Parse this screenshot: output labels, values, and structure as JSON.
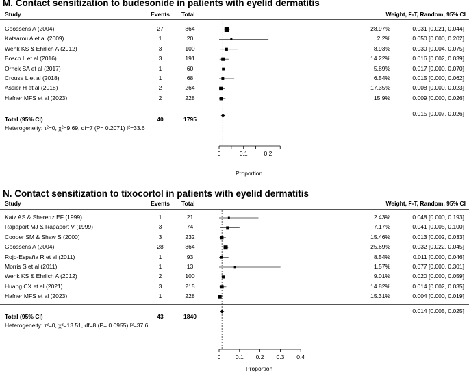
{
  "chart_data": [
    {
      "type": "forest",
      "title": "M. Contact sensitization to budesonide in patients with eyelid dermatitis",
      "columns": {
        "study": "Study",
        "events": "Events",
        "total": "Total",
        "weight_ci": "Weight, F-T, Random, 95% CI"
      },
      "studies": [
        {
          "study": "Goossens A (2004)",
          "events": "27",
          "total": "864",
          "weight": "28.97%",
          "estimate": 0.031,
          "ci_low": 0.021,
          "ci_high": 0.044,
          "ci_text": "0.031 [0.021, 0.044]"
        },
        {
          "study": "Katsarou A et al (2009)",
          "events": "1",
          "total": "20",
          "weight": "2.2%",
          "estimate": 0.05,
          "ci_low": 0.0,
          "ci_high": 0.202,
          "ci_text": "0.050 [0.000, 0.202]"
        },
        {
          "study": "Wenk KS & Ehrlich A (2012)",
          "events": "3",
          "total": "100",
          "weight": "8.93%",
          "estimate": 0.03,
          "ci_low": 0.004,
          "ci_high": 0.075,
          "ci_text": "0.030 [0.004, 0.075]"
        },
        {
          "study": "Bosco L et al (2016)",
          "events": "3",
          "total": "191",
          "weight": "14.22%",
          "estimate": 0.016,
          "ci_low": 0.002,
          "ci_high": 0.039,
          "ci_text": "0.016 [0.002, 0.039]"
        },
        {
          "study": "Ornek SA et al (2017)",
          "events": "1",
          "total": "60",
          "weight": "5.89%",
          "estimate": 0.017,
          "ci_low": 0.0,
          "ci_high": 0.07,
          "ci_text": "0.017 [0.000, 0.070]"
        },
        {
          "study": "Crouse L et al (2018)",
          "events": "1",
          "total": "68",
          "weight": "6.54%",
          "estimate": 0.015,
          "ci_low": 0.0,
          "ci_high": 0.062,
          "ci_text": "0.015 [0.000, 0.062]"
        },
        {
          "study": "Assier H et al (2018)",
          "events": "2",
          "total": "264",
          "weight": "17.35%",
          "estimate": 0.008,
          "ci_low": 0.0,
          "ci_high": 0.023,
          "ci_text": "0.008 [0.000, 0.023]"
        },
        {
          "study": "Hafner MFS et al (2023)",
          "events": "2",
          "total": "228",
          "weight": "15.9%",
          "estimate": 0.009,
          "ci_low": 0.0,
          "ci_high": 0.026,
          "ci_text": "0.009 [0.000, 0.026]"
        }
      ],
      "total": {
        "label": "Total (95% CI)",
        "events": "40",
        "total": "1795",
        "estimate": 0.015,
        "ci_low": 0.007,
        "ci_high": 0.026,
        "ci_text": "0.015 [0.007, 0.026]"
      },
      "heterogeneity": "Heterogeneity: τ²=0, χ²=9.69, df=7 (P= 0.2071) I²=33.6",
      "xlabel": "Proportion",
      "xlim": [
        0,
        0.25
      ],
      "xticks": [
        0,
        0.05,
        0.1,
        0.15,
        0.2,
        0.25
      ],
      "xticklabels": [
        "0",
        "0.1",
        "0.2"
      ],
      "xticklabel_values": [
        0,
        0.1,
        0.2
      ],
      "reference_line": 0.015
    },
    {
      "type": "forest",
      "title": "N. Contact sensitization to tixocortol in patients with eyelid dermatitis",
      "columns": {
        "study": "Study",
        "events": "Events",
        "total": "Total",
        "weight_ci": "Weight, F-T, Random, 95% CI"
      },
      "studies": [
        {
          "study": "Katz AS & Sherertz EF (1999)",
          "events": "1",
          "total": "21",
          "weight": "2.43%",
          "estimate": 0.048,
          "ci_low": 0.0,
          "ci_high": 0.193,
          "ci_text": "0.048 [0.000, 0.193]"
        },
        {
          "study": "Rapaport MJ & Rapaport V (1999)",
          "events": "3",
          "total": "74",
          "weight": "7.17%",
          "estimate": 0.041,
          "ci_low": 0.005,
          "ci_high": 0.1,
          "ci_text": "0.041 [0.005, 0.100]"
        },
        {
          "study": "Cooper SM & Shaw S (2000)",
          "events": "3",
          "total": "232",
          "weight": "15.46%",
          "estimate": 0.013,
          "ci_low": 0.002,
          "ci_high": 0.033,
          "ci_text": "0.013 [0.002, 0.033]"
        },
        {
          "study": "Goossens A (2004)",
          "events": "28",
          "total": "864",
          "weight": "25.69%",
          "estimate": 0.032,
          "ci_low": 0.022,
          "ci_high": 0.045,
          "ci_text": "0.032 [0.022, 0.045]"
        },
        {
          "study": "Rojo-España R et al (2011)",
          "events": "1",
          "total": "93",
          "weight": "8.54%",
          "estimate": 0.011,
          "ci_low": 0.0,
          "ci_high": 0.046,
          "ci_text": "0.011 [0.000, 0.046]"
        },
        {
          "study": "Morris S et al (2011)",
          "events": "1",
          "total": "13",
          "weight": "1.57%",
          "estimate": 0.077,
          "ci_low": 0.0,
          "ci_high": 0.301,
          "ci_text": "0.077 [0.000, 0.301]"
        },
        {
          "study": "Wenk KS & Ehrlich A (2012)",
          "events": "2",
          "total": "100",
          "weight": "9.01%",
          "estimate": 0.02,
          "ci_low": 0.0,
          "ci_high": 0.059,
          "ci_text": "0.020 [0.000, 0.059]"
        },
        {
          "study": "Huang CX et al (2021)",
          "events": "3",
          "total": "215",
          "weight": "14.82%",
          "estimate": 0.014,
          "ci_low": 0.002,
          "ci_high": 0.035,
          "ci_text": "0.014 [0.002, 0.035]"
        },
        {
          "study": "Hafner MFS et al (2023)",
          "events": "1",
          "total": "228",
          "weight": "15.31%",
          "estimate": 0.004,
          "ci_low": 0.0,
          "ci_high": 0.019,
          "ci_text": "0.004 [0.000, 0.019]"
        }
      ],
      "total": {
        "label": "Total (95% CI)",
        "events": "43",
        "total": "1840",
        "estimate": 0.014,
        "ci_low": 0.005,
        "ci_high": 0.025,
        "ci_text": "0.014 [0.005, 0.025]"
      },
      "heterogeneity": "Heterogeneity: τ²=0, χ²=13.51, df=8 (P= 0.0955) I²=37.6",
      "xlabel": "Proportion",
      "xlim": [
        0,
        0.4
      ],
      "xticks": [
        0,
        0.1,
        0.2,
        0.3,
        0.4
      ],
      "xticklabels": [
        "0",
        "0.1",
        "0.2",
        "0.3",
        "0.4"
      ],
      "xticklabel_values": [
        0,
        0.1,
        0.2,
        0.3,
        0.4
      ],
      "reference_line": 0.014
    }
  ]
}
